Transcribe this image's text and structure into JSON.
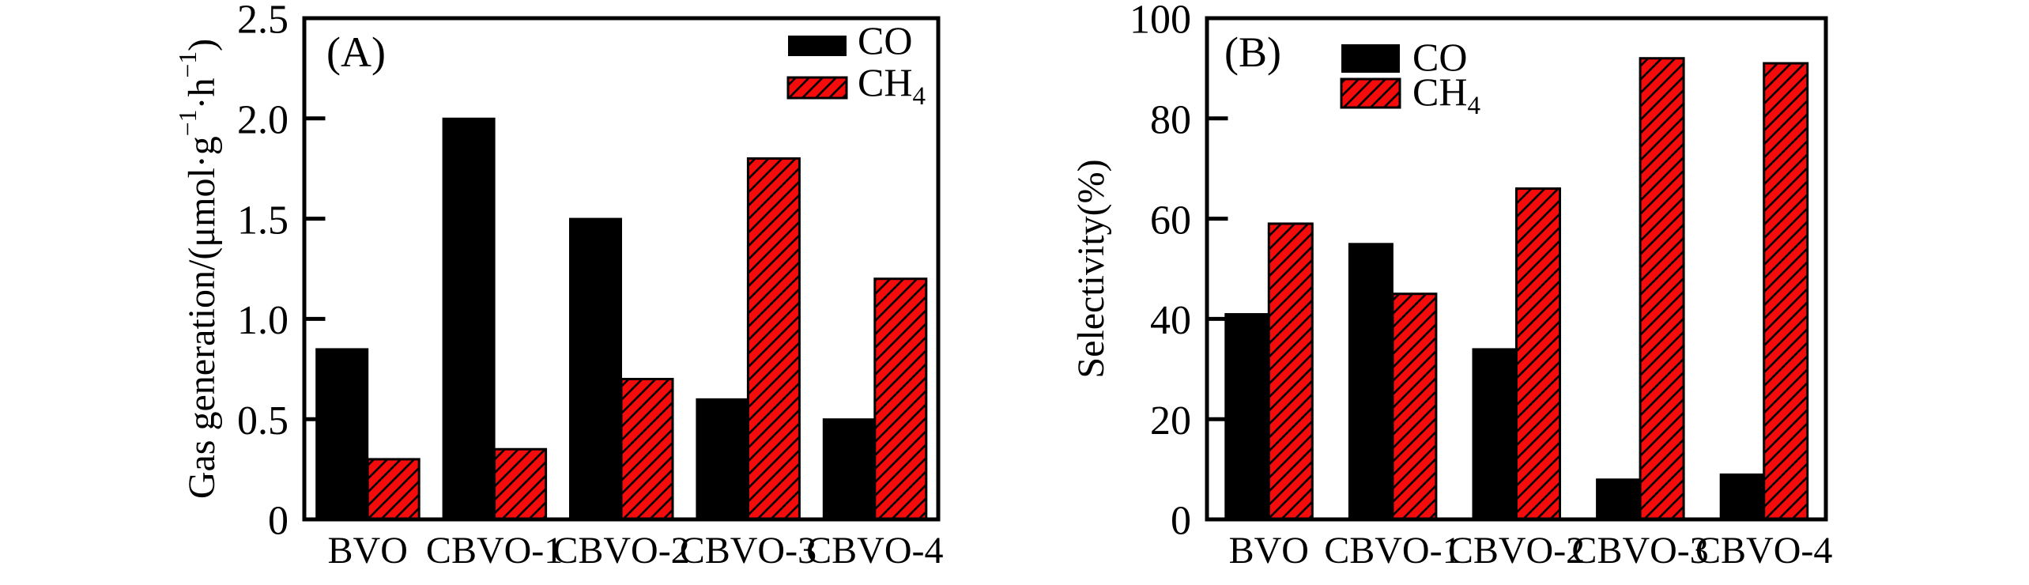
{
  "figure": {
    "background": "#ffffff",
    "axis_color": "#000000",
    "hatch_color": "#000000",
    "series_colors": {
      "co": "#000000",
      "ch4": "#f40b0b"
    }
  },
  "chart_data": [
    {
      "type": "bar",
      "panel_label": "(A)",
      "categories": [
        "BVO",
        "CBVO-1",
        "CBVO-2",
        "CBVO-3",
        "CBVO-4"
      ],
      "series": [
        {
          "name": "CO",
          "name_parts": [
            {
              "t": "CO"
            }
          ],
          "color": "#000000",
          "hatch": false,
          "values": [
            0.85,
            2.0,
            1.5,
            0.6,
            0.5
          ]
        },
        {
          "name": "CH4",
          "name_parts": [
            {
              "t": "CH"
            },
            {
              "t": "4",
              "sub": true
            }
          ],
          "color": "#f40b0b",
          "hatch": true,
          "values": [
            0.3,
            0.35,
            0.7,
            1.8,
            1.2
          ]
        }
      ],
      "xlabel": "",
      "ylabel": "Gas generation/(μmol·g⁻¹·h⁻¹)",
      "ylabel_parts": [
        {
          "t": "Gas generation/(μmol·g"
        },
        {
          "t": "−1",
          "sup": true
        },
        {
          "t": "·h"
        },
        {
          "t": "−1",
          "sup": true
        },
        {
          "t": ")"
        }
      ],
      "ylim": [
        0,
        2.5
      ],
      "yticks": {
        "values": [
          0,
          0.5,
          1.0,
          1.5,
          2.0,
          2.5
        ],
        "labels": [
          "0",
          "0.5",
          "1.0",
          "1.5",
          "2.0",
          "2.5"
        ]
      },
      "legend_position": "top-right",
      "grid": false
    },
    {
      "type": "bar",
      "panel_label": "(B)",
      "categories": [
        "BVO",
        "CBVO-1",
        "CBVO-2",
        "CBVO-3",
        "CBVO-4"
      ],
      "series": [
        {
          "name": "CO",
          "name_parts": [
            {
              "t": "CO"
            }
          ],
          "color": "#000000",
          "hatch": false,
          "values": [
            41,
            55,
            34,
            8,
            9
          ]
        },
        {
          "name": "CH4",
          "name_parts": [
            {
              "t": "CH"
            },
            {
              "t": "4",
              "sub": true
            }
          ],
          "color": "#f40b0b",
          "hatch": true,
          "values": [
            59,
            45,
            66,
            92,
            91
          ]
        }
      ],
      "xlabel": "",
      "ylabel": "Selectivity(%)",
      "ylabel_parts": [
        {
          "t": "Selectivity(%)"
        }
      ],
      "ylim": [
        0,
        100
      ],
      "yticks": {
        "values": [
          0,
          20,
          40,
          60,
          80,
          100
        ],
        "labels": [
          "0",
          "20",
          "40",
          "60",
          "80",
          "100"
        ]
      },
      "legend_position": "top-center",
      "grid": false
    }
  ]
}
